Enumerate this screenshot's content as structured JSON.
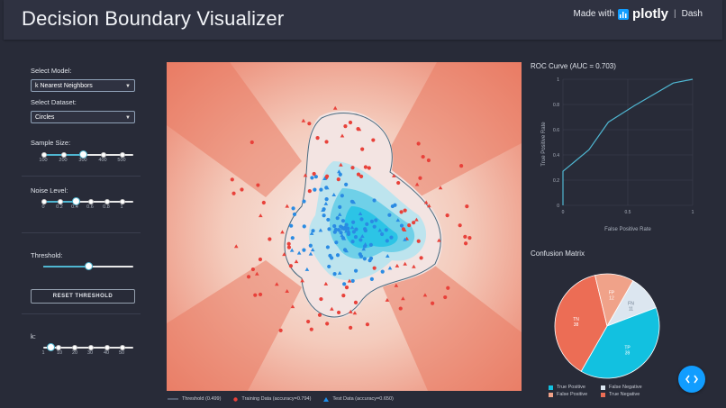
{
  "app": {
    "title": "Decision Boundary Visualizer"
  },
  "brand": {
    "made_with": "Made with",
    "logo_text": "plotly",
    "separator": "|",
    "product": "Dash"
  },
  "controls": {
    "model_label": "Select Model:",
    "model_value": "k Nearest Neighbors",
    "dataset_label": "Select Dataset:",
    "dataset_value": "Circles",
    "sample_size": {
      "label": "Sample Size:",
      "marks": [
        "100",
        "200",
        "300",
        "400",
        "500"
      ],
      "value_index": 2
    },
    "noise": {
      "label": "Noise Level:",
      "marks": [
        "0",
        "0.2",
        "0.4",
        "0.6",
        "0.8",
        "1"
      ],
      "value_index": 2
    },
    "threshold": {
      "label": "Threshold:",
      "value": 0.5
    },
    "reset_label": "RESET THRESHOLD",
    "k": {
      "label": "k:",
      "marks": [
        "1",
        "10",
        "20",
        "30",
        "40",
        "50"
      ],
      "value_index": 0
    }
  },
  "main_legend": {
    "threshold": "Threshold (0.499)",
    "train": "Training Data (accuracy=0.794)",
    "test": "Test Data (accuracy=0.650)"
  },
  "roc": {
    "title": "ROC Curve (AUC = 0.703)",
    "xlabel": "False Positive Rate",
    "ylabel": "True Positive Rate",
    "x_ticks": [
      "0",
      "0.5",
      "1"
    ],
    "y_ticks": [
      "0",
      "0.2",
      "0.4",
      "0.6",
      "0.8",
      "1"
    ]
  },
  "confusion": {
    "title": "Confusion Matrix",
    "legend": [
      "True Positive",
      "False Negative",
      "False Positive",
      "True Negative"
    ]
  },
  "colors": {
    "tp": "#12c1e0",
    "fn": "#dce6f0",
    "fp": "#f0a289",
    "tn": "#ec6d55",
    "accent": "#4fb6d1",
    "fab": "#119dff"
  },
  "chart_data": [
    {
      "type": "line",
      "title": "ROC Curve (AUC = 0.703)",
      "xlabel": "False Positive Rate",
      "ylabel": "True Positive Rate",
      "xlim": [
        0,
        1
      ],
      "ylim": [
        0,
        1
      ],
      "series": [
        {
          "x": [
            0,
            0.0,
            0.2,
            0.35,
            0.55,
            0.85,
            1.0
          ],
          "y": [
            0,
            0.27,
            0.44,
            0.66,
            0.79,
            0.97,
            1.0
          ]
        }
      ]
    },
    {
      "type": "pie",
      "title": "Confusion Matrix",
      "slices": [
        {
          "label": "TP",
          "legend": "True Positive",
          "value": 39
        },
        {
          "label": "FN",
          "legend": "False Negative",
          "value": 11
        },
        {
          "label": "FP",
          "legend": "False Positive",
          "value": 12
        },
        {
          "label": "TN",
          "legend": "True Negative",
          "value": 38
        }
      ]
    }
  ]
}
